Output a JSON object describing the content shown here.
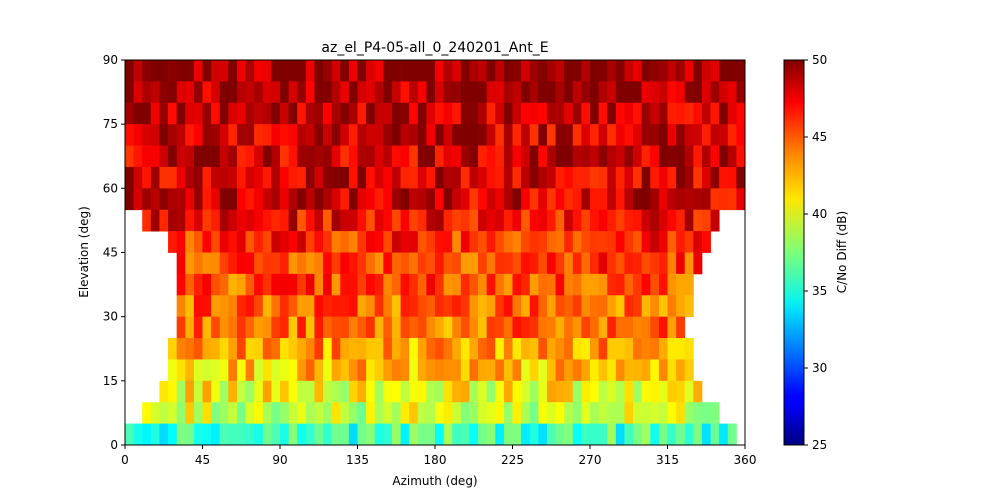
{
  "chart_data": {
    "type": "heatmap",
    "title": "az_el_P4-05-all_0_240201_Ant_E",
    "xlabel": "Azimuth (deg)",
    "ylabel": "Elevation (deg)",
    "colorbar_label": "C/No Diff (dB)",
    "colormap": "jet",
    "xlim": [
      0,
      360
    ],
    "ylim": [
      0,
      90
    ],
    "clim": [
      25,
      50
    ],
    "x_ticks": [
      0,
      45,
      90,
      135,
      180,
      225,
      270,
      315,
      360
    ],
    "y_ticks": [
      0,
      15,
      30,
      45,
      60,
      75,
      90
    ],
    "colorbar_ticks": [
      25,
      30,
      35,
      40,
      45,
      50
    ],
    "x_tick_labels": [
      "0",
      "45",
      "90",
      "135",
      "180",
      "225",
      "270",
      "315",
      "360"
    ],
    "y_tick_labels": [
      "0",
      "15",
      "30",
      "45",
      "60",
      "75",
      "90"
    ],
    "colorbar_tick_labels": [
      "25",
      "30",
      "35",
      "40",
      "45",
      "50"
    ],
    "azimuth_bin_deg": 5,
    "elevation_bin_deg": 5,
    "elevation_rows": [
      {
        "elevation_bin_start": 85,
        "az_start": 0,
        "az_end": 360,
        "typical_value": 49.5
      },
      {
        "elevation_bin_start": 80,
        "az_start": 0,
        "az_end": 360,
        "typical_value": 49
      },
      {
        "elevation_bin_start": 75,
        "az_start": 0,
        "az_end": 360,
        "typical_value": 48.5
      },
      {
        "elevation_bin_start": 70,
        "az_start": 0,
        "az_end": 360,
        "typical_value": 48
      },
      {
        "elevation_bin_start": 65,
        "az_start": 0,
        "az_end": 360,
        "typical_value": 48
      },
      {
        "elevation_bin_start": 60,
        "az_start": 0,
        "az_end": 360,
        "typical_value": 48
      },
      {
        "elevation_bin_start": 55,
        "az_start": 0,
        "az_end": 360,
        "typical_value": 48
      },
      {
        "elevation_bin_start": 50,
        "az_start": 10,
        "az_end": 345,
        "typical_value": 47
      },
      {
        "elevation_bin_start": 45,
        "az_start": 25,
        "az_end": 340,
        "typical_value": 46
      },
      {
        "elevation_bin_start": 40,
        "az_start": 30,
        "az_end": 335,
        "typical_value": 45.5
      },
      {
        "elevation_bin_start": 35,
        "az_start": 30,
        "az_end": 330,
        "typical_value": 45
      },
      {
        "elevation_bin_start": 30,
        "az_start": 30,
        "az_end": 330,
        "typical_value": 44.5
      },
      {
        "elevation_bin_start": 25,
        "az_start": 30,
        "az_end": 325,
        "typical_value": 44
      },
      {
        "elevation_bin_start": 20,
        "az_start": 25,
        "az_end": 330,
        "typical_value": 43
      },
      {
        "elevation_bin_start": 15,
        "az_start": 25,
        "az_end": 330,
        "typical_value": 42
      },
      {
        "elevation_bin_start": 10,
        "az_start": 20,
        "az_end": 335,
        "typical_value": 40.5
      },
      {
        "elevation_bin_start": 5,
        "az_start": 10,
        "az_end": 345,
        "typical_value": 39.5
      },
      {
        "elevation_bin_start": 0,
        "az_start": 0,
        "az_end": 355,
        "typical_value": 36
      }
    ]
  }
}
